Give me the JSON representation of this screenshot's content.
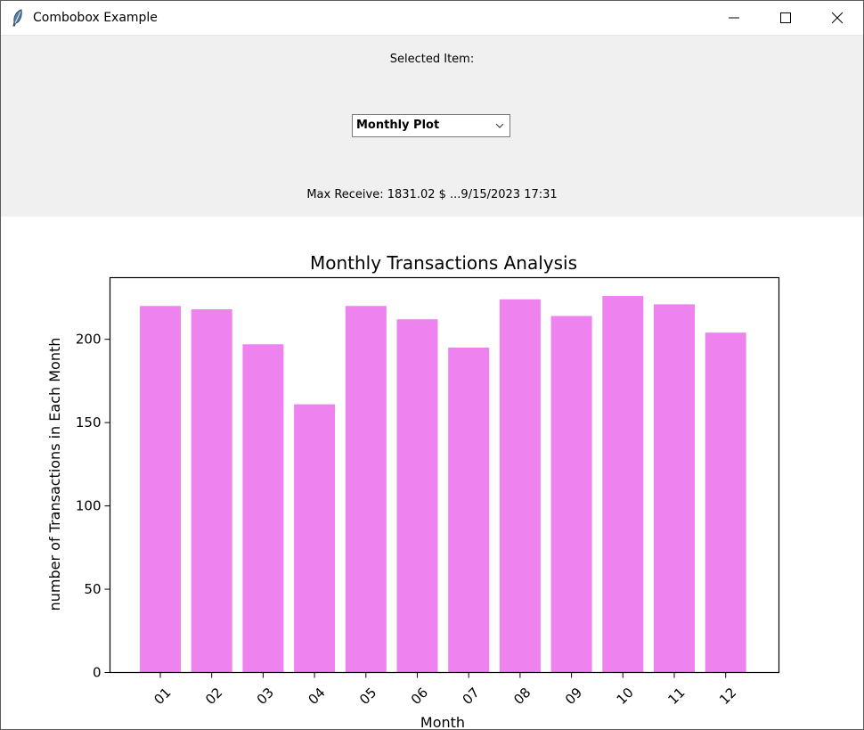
{
  "window": {
    "title": "Combobox Example",
    "icons": {
      "app": "feather-icon",
      "minimize": "minimize-icon",
      "maximize": "maximize-icon",
      "close": "close-icon"
    }
  },
  "panel": {
    "selected_label": "Selected Item:",
    "combobox": {
      "value": "Monthly Plot",
      "arrow_icon": "chevron-down-icon"
    },
    "max_receive": "Max Receive: 1831.02 $ ...9/15/2023 17:31"
  },
  "chart_data": {
    "type": "bar",
    "title": "Monthly Transactions Analysis",
    "xlabel": "Month",
    "ylabel": "number of Transactions in Each Month",
    "categories": [
      "01",
      "02",
      "03",
      "04",
      "05",
      "06",
      "07",
      "08",
      "09",
      "10",
      "11",
      "12"
    ],
    "values": [
      220,
      218,
      197,
      161,
      220,
      212,
      195,
      224,
      214,
      226,
      221,
      204
    ],
    "ylim": [
      0,
      237
    ],
    "yticks": [
      0,
      50,
      100,
      150,
      200
    ],
    "bar_color": "#ee82ee",
    "grid": false,
    "tick_rotation": "45deg"
  }
}
